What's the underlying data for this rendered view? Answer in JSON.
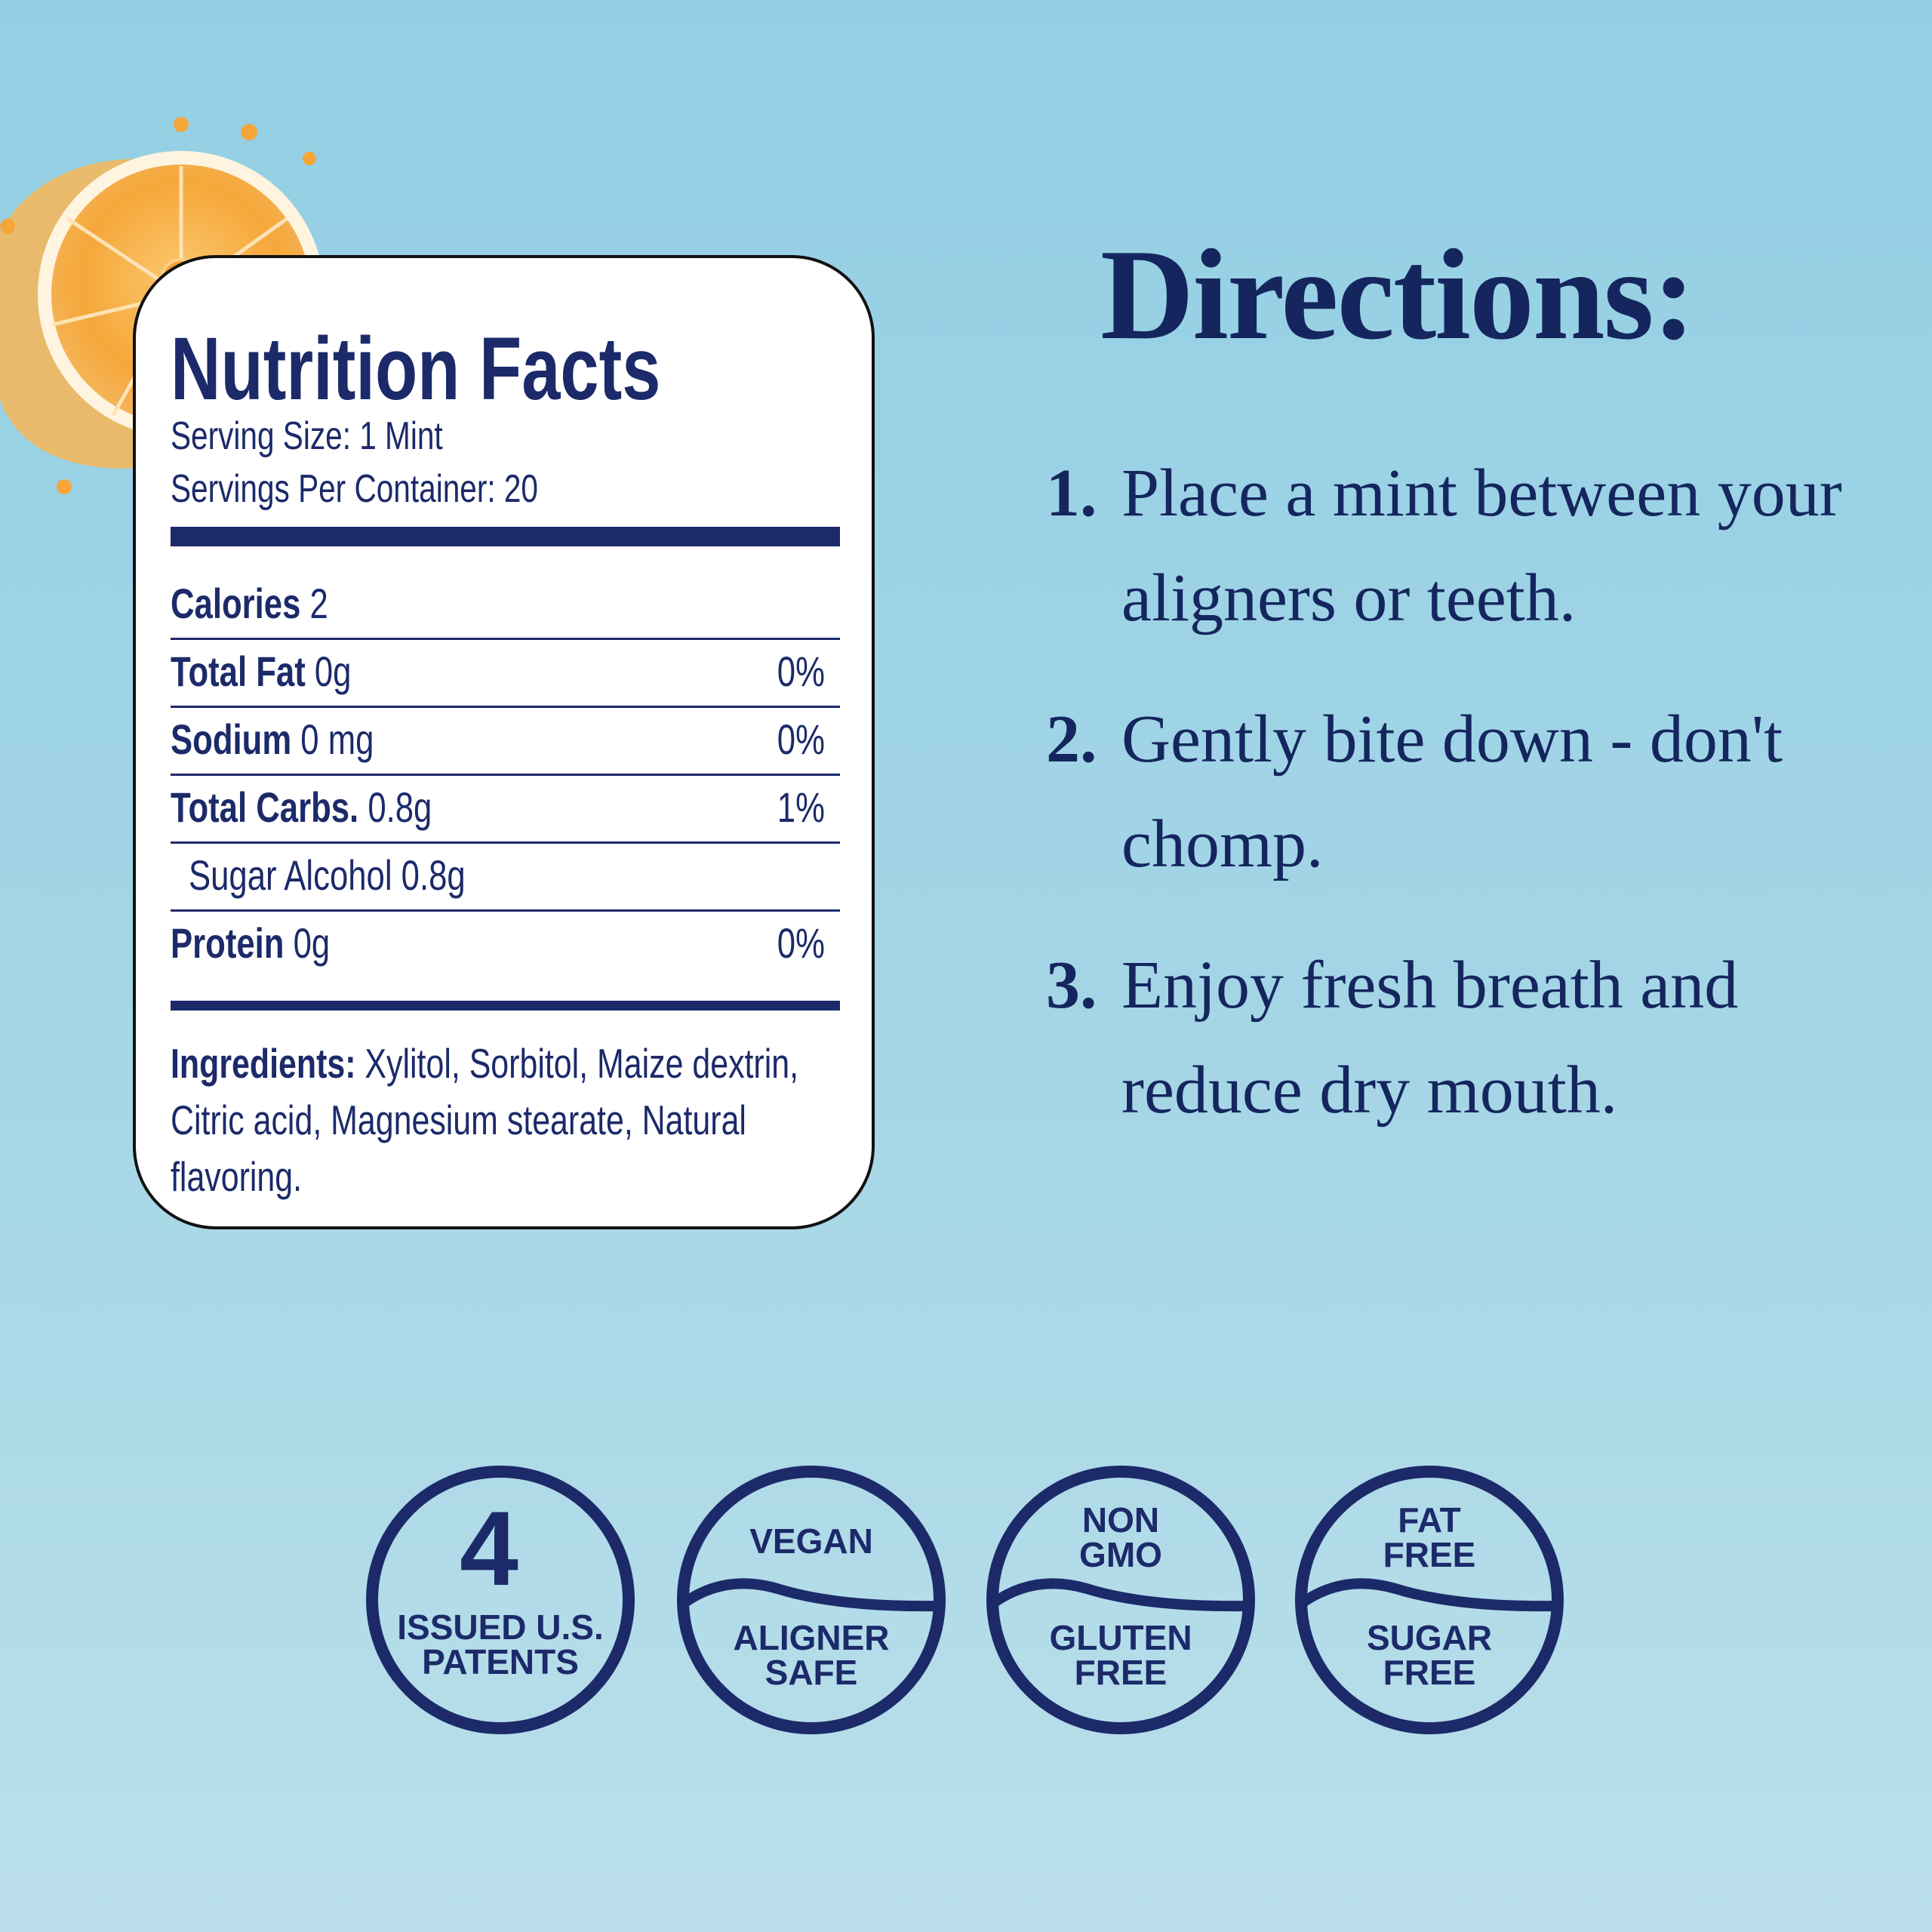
{
  "colors": {
    "navy": "#1c2a6a",
    "background_top": "#93cfe4",
    "background_bottom": "#badfea",
    "orange": "#f5a63a"
  },
  "decoration": {
    "image": "orange-slice-splash"
  },
  "nutrition": {
    "title": "Nutrition Facts",
    "serving_size": "Serving Size: 1 Mint",
    "servings_per_container": "Servings Per Container: 20",
    "calories_label": "Calories",
    "calories_value": "2",
    "rows": [
      {
        "label": "Total Fat",
        "amount": "0g",
        "dv": "0%"
      },
      {
        "label": "Sodium",
        "amount": "0 mg",
        "dv": "0%"
      },
      {
        "label": "Total Carbs.",
        "amount": "0.8g",
        "dv": "1%"
      },
      {
        "label": "",
        "amount": "Sugar Alcohol 0.8g",
        "dv": ""
      },
      {
        "label": "Protein",
        "amount": "0g",
        "dv": "0%"
      }
    ],
    "ingredients_label": "Ingredients:",
    "ingredients": "Xylitol, Sorbitol, Maize dextrin, Citric acid, Magnesium stearate, Natural flavoring."
  },
  "directions": {
    "title": "Directions:",
    "steps": [
      {
        "num": "1.",
        "text": "Place a mint between your aligners or teeth."
      },
      {
        "num": "2.",
        "text": "Gently bite down - don't chomp."
      },
      {
        "num": "3.",
        "text": "Enjoy fresh breath and reduce dry mouth."
      }
    ]
  },
  "badges": [
    {
      "big": "4",
      "line1": "ISSUED U.S.",
      "line2": "PATENTS"
    },
    {
      "top1": "VEGAN",
      "top2": "",
      "bottom1": "ALIGNER",
      "bottom2": "SAFE"
    },
    {
      "top1": "NON",
      "top2": "GMO",
      "bottom1": "GLUTEN",
      "bottom2": "FREE"
    },
    {
      "top1": "FAT",
      "top2": "FREE",
      "bottom1": "SUGAR",
      "bottom2": "FREE"
    }
  ]
}
